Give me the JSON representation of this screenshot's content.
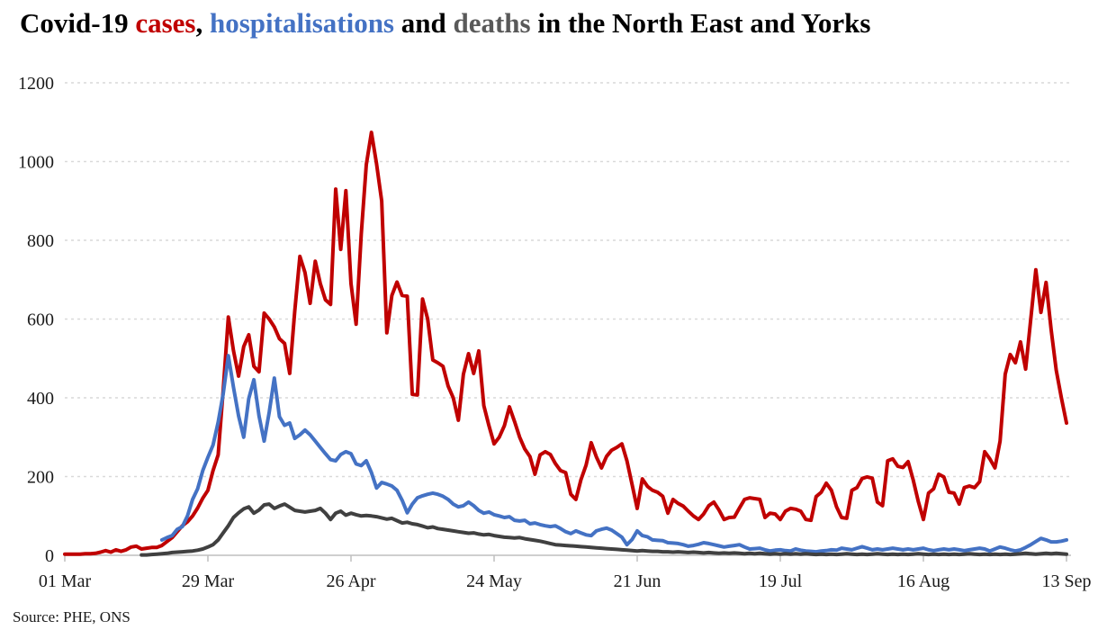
{
  "title": {
    "full_text": "Covid-19 cases, hospitalisations and deaths in the North East and Yorks",
    "segments": [
      {
        "text": "Covid-19 ",
        "color": "#000000"
      },
      {
        "text": "cases",
        "color": "#c00000"
      },
      {
        "text": ", ",
        "color": "#000000"
      },
      {
        "text": "hospitalisations",
        "color": "#4472c4"
      },
      {
        "text": " and ",
        "color": "#000000"
      },
      {
        "text": "deaths",
        "color": "#595959"
      },
      {
        "text": " in the North East and Yorks",
        "color": "#000000"
      }
    ]
  },
  "source": "Source: PHE, ONS",
  "chart_data": {
    "type": "line",
    "title": "Covid-19 cases, hospitalisations and deaths in the North East and Yorks",
    "xlabel": "",
    "ylabel": "",
    "x_unit": "daily values, day index 0 = 01 Mar, day 196 = 13 Sep",
    "x_tick_labels": [
      "01 Mar",
      "29 Mar",
      "26 Apr",
      "24 May",
      "21 Jun",
      "19 Jul",
      "16 Aug",
      "13 Sep"
    ],
    "x_tick_days": [
      0,
      28,
      56,
      84,
      112,
      140,
      168,
      196
    ],
    "y_ticks": [
      0,
      200,
      400,
      600,
      800,
      1000,
      1200
    ],
    "ylim": [
      0,
      1200
    ],
    "grid": "horizontal-dashed",
    "legend_position": "colored words in title",
    "colors": {
      "grid": "#d9d9d9",
      "axis": "#bfbfbf",
      "cases": "#c00000",
      "hospitalisations": "#4472c4",
      "deaths": "#404040"
    },
    "series": [
      {
        "name": "cases",
        "color": "#c00000",
        "values": [
          3,
          3,
          3,
          3,
          4,
          4,
          5,
          8,
          12,
          8,
          14,
          10,
          14,
          21,
          23,
          16,
          18,
          20,
          20,
          25,
          35,
          45,
          60,
          75,
          85,
          100,
          120,
          145,
          165,
          215,
          255,
          420,
          605,
          520,
          455,
          530,
          560,
          480,
          466,
          615,
          600,
          580,
          550,
          538,
          462,
          620,
          759,
          718,
          640,
          747,
          690,
          649,
          637,
          930,
          777,
          926,
          690,
          587,
          816,
          992,
          1074,
          994,
          900,
          565,
          660,
          694,
          660,
          658,
          409,
          407,
          651,
          600,
          496,
          489,
          480,
          430,
          400,
          343,
          460,
          512,
          462,
          519,
          380,
          329,
          283,
          300,
          329,
          377,
          340,
          300,
          270,
          251,
          206,
          255,
          263,
          256,
          233,
          215,
          210,
          155,
          142,
          192,
          229,
          286,
          250,
          222,
          251,
          267,
          274,
          283,
          240,
          180,
          119,
          194,
          175,
          165,
          160,
          150,
          107,
          142,
          132,
          125,
          112,
          100,
          91,
          105,
          126,
          135,
          115,
          91,
          96,
          97,
          120,
          142,
          146,
          144,
          142,
          96,
          107,
          105,
          91,
          112,
          119,
          117,
          112,
          91,
          89,
          149,
          160,
          183,
          165,
          123,
          96,
          94,
          165,
          172,
          195,
          199,
          196,
          135,
          126,
          240,
          245,
          226,
          223,
          238,
          192,
          137,
          91,
          158,
          169,
          206,
          199,
          160,
          158,
          130,
          172,
          176,
          172,
          187,
          263,
          245,
          222,
          290,
          460,
          510,
          489,
          542,
          473,
          600,
          725,
          617,
          693,
          572,
          470,
          400,
          336
        ]
      },
      {
        "name": "hospitalisations",
        "color": "#4472c4",
        "values": [
          null,
          null,
          null,
          null,
          null,
          null,
          null,
          null,
          null,
          null,
          null,
          null,
          null,
          null,
          null,
          null,
          null,
          null,
          null,
          39,
          45,
          50,
          66,
          73,
          100,
          142,
          169,
          215,
          249,
          280,
          338,
          410,
          507,
          427,
          354,
          300,
          398,
          446,
          354,
          290,
          363,
          450,
          352,
          330,
          336,
          297,
          306,
          318,
          306,
          290,
          274,
          258,
          243,
          240,
          256,
          263,
          258,
          232,
          228,
          240,
          210,
          171,
          185,
          181,
          176,
          165,
          140,
          108,
          130,
          146,
          151,
          155,
          158,
          155,
          150,
          142,
          130,
          123,
          126,
          135,
          126,
          114,
          107,
          110,
          103,
          100,
          96,
          98,
          89,
          87,
          89,
          80,
          82,
          78,
          75,
          73,
          75,
          68,
          60,
          55,
          62,
          57,
          52,
          50,
          62,
          66,
          69,
          64,
          55,
          46,
          27,
          40,
          62,
          50,
          47,
          39,
          38,
          37,
          32,
          31,
          30,
          27,
          23,
          25,
          28,
          32,
          30,
          27,
          24,
          21,
          23,
          25,
          27,
          21,
          16,
          17,
          18,
          14,
          11,
          13,
          14,
          12,
          11,
          16,
          13,
          11,
          10,
          9,
          11,
          12,
          14,
          13,
          18,
          16,
          14,
          18,
          22,
          18,
          14,
          16,
          14,
          16,
          18,
          16,
          14,
          16,
          14,
          16,
          18,
          14,
          12,
          14,
          16,
          14,
          16,
          14,
          12,
          14,
          16,
          18,
          16,
          11,
          16,
          21,
          18,
          14,
          11,
          14,
          20,
          27,
          35,
          43,
          39,
          34,
          34,
          36,
          39
        ]
      },
      {
        "name": "deaths",
        "color": "#404040",
        "values": [
          null,
          null,
          null,
          null,
          null,
          null,
          null,
          null,
          null,
          null,
          null,
          null,
          null,
          null,
          null,
          1,
          1,
          2,
          3,
          4,
          5,
          7,
          8,
          9,
          10,
          11,
          13,
          16,
          21,
          27,
          39,
          57,
          75,
          96,
          108,
          118,
          123,
          107,
          115,
          128,
          130,
          119,
          125,
          130,
          122,
          114,
          112,
          110,
          112,
          114,
          119,
          107,
          91,
          107,
          112,
          102,
          107,
          103,
          100,
          101,
          100,
          98,
          95,
          92,
          94,
          88,
          82,
          84,
          80,
          78,
          74,
          70,
          72,
          68,
          66,
          64,
          62,
          60,
          58,
          56,
          57,
          54,
          52,
          53,
          50,
          48,
          46,
          45,
          44,
          45,
          42,
          40,
          38,
          36,
          33,
          30,
          27,
          26,
          25,
          24,
          23,
          22,
          21,
          20,
          19,
          18,
          17,
          16,
          15,
          14,
          13,
          12,
          11,
          12,
          11,
          10,
          10,
          9,
          9,
          8,
          9,
          8,
          7,
          8,
          7,
          6,
          7,
          6,
          5,
          6,
          5,
          6,
          5,
          4,
          5,
          4,
          5,
          4,
          3,
          4,
          3,
          4,
          3,
          4,
          3,
          4,
          3,
          2,
          3,
          2,
          3,
          2,
          3,
          4,
          3,
          2,
          3,
          2,
          3,
          4,
          3,
          2,
          3,
          2,
          3,
          2,
          3,
          4,
          3,
          2,
          3,
          2,
          3,
          2,
          3,
          2,
          3,
          4,
          3,
          2,
          3,
          2,
          3,
          2,
          3,
          2,
          3,
          4,
          5,
          4,
          3,
          4,
          5,
          4,
          5,
          4,
          3
        ]
      }
    ]
  }
}
